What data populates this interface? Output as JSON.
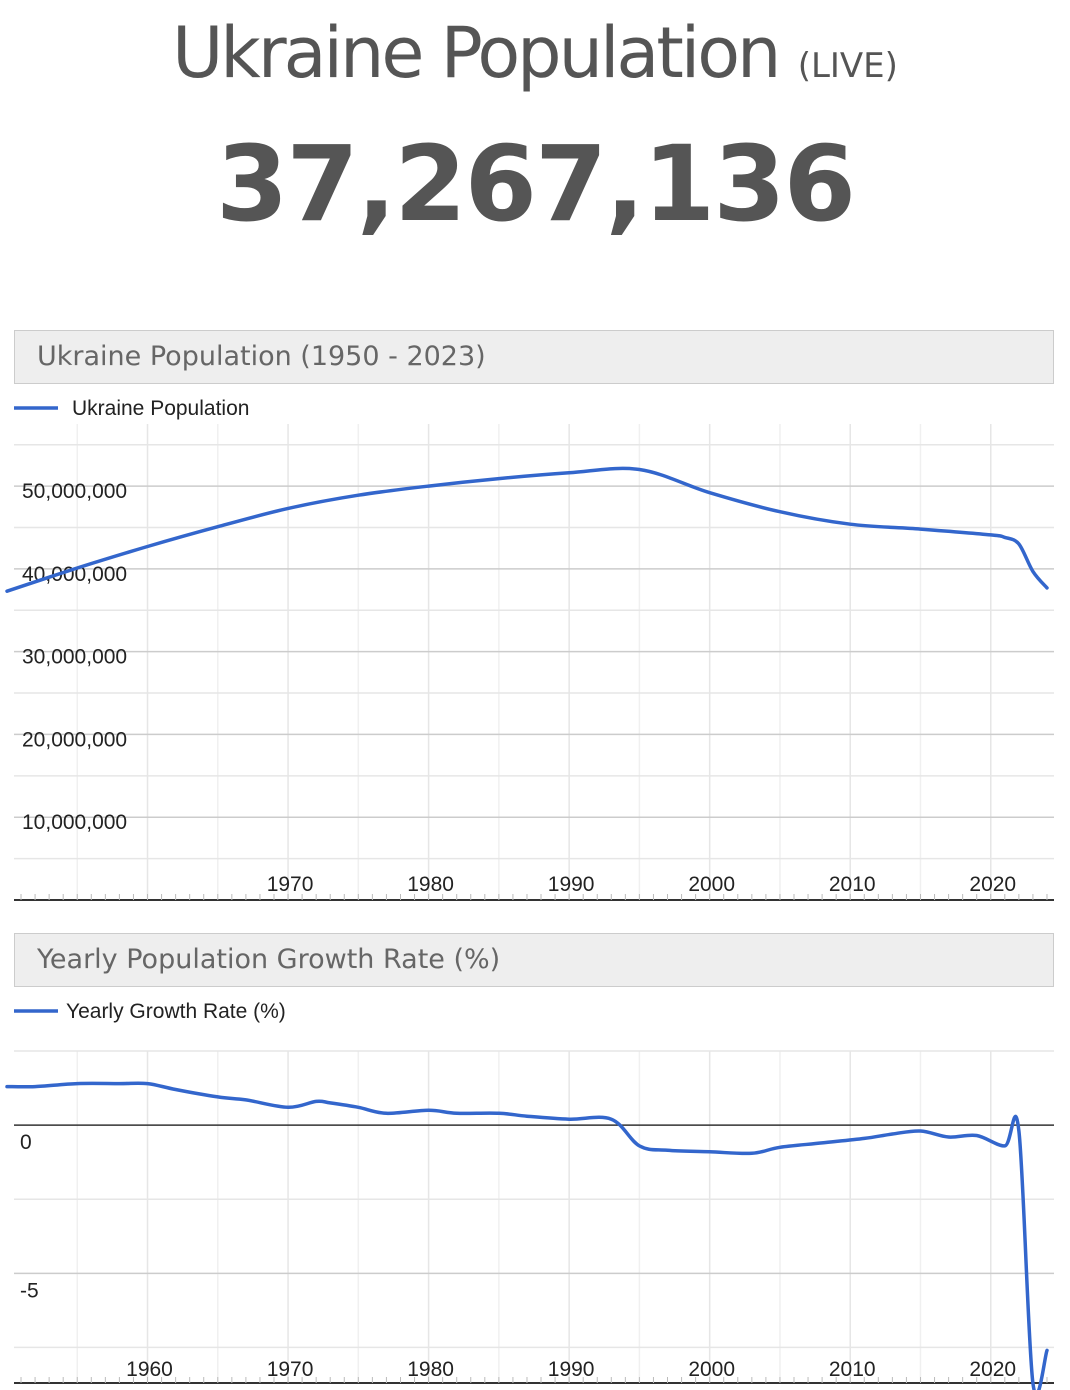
{
  "header": {
    "title": "Ukraine Population",
    "live_label": "(LIVE)",
    "counter": "37,267,136"
  },
  "colors": {
    "line": "#3366cc",
    "grid": "#e6e6e6",
    "grid_major": "#cccccc",
    "text": "#555555",
    "box_bg": "#eeeeee"
  },
  "chart_data": [
    {
      "type": "line",
      "title": "Ukraine Population (1950 - 2023)",
      "series": [
        {
          "name": "Ukraine Population",
          "x": [
            1950,
            1955,
            1960,
            1965,
            1970,
            1975,
            1980,
            1985,
            1990,
            1995,
            2000,
            2005,
            2010,
            2015,
            2020,
            2021,
            2022,
            2023,
            2024
          ],
          "y": [
            37300000,
            40100000,
            42700000,
            45100000,
            47300000,
            48900000,
            50000000,
            50900000,
            51600000,
            52000000,
            49200000,
            46900000,
            45400000,
            44800000,
            44100000,
            43800000,
            43000000,
            39700000,
            37700000
          ]
        }
      ],
      "ylim": [
        0,
        57500000
      ],
      "yticks": [
        10000000,
        20000000,
        30000000,
        40000000,
        50000000
      ],
      "ytick_labels": [
        "10,000,000",
        "20,000,000",
        "30,000,000",
        "40,000,000",
        "50,000,000"
      ],
      "xlim": [
        1950.5,
        2024.5
      ],
      "xticks": [
        1970,
        1980,
        1990,
        2000,
        2010,
        2020
      ],
      "xtick_labels": [
        "1970",
        "1980",
        "1990",
        "2000",
        "2010",
        "2020"
      ],
      "grid": true,
      "legend": "top-left"
    },
    {
      "type": "line",
      "title": "Yearly Population Growth Rate (%)",
      "series": [
        {
          "name": "Yearly Growth Rate (%)",
          "x": [
            1950,
            1952,
            1955,
            1958,
            1960,
            1962,
            1965,
            1967,
            1970,
            1972,
            1973,
            1975,
            1977,
            1980,
            1982,
            1985,
            1987,
            1990,
            1993,
            1995,
            1997,
            2000,
            2003,
            2005,
            2008,
            2011,
            2013,
            2015,
            2017,
            2019,
            2021,
            2022,
            2023,
            2024
          ],
          "y": [
            1.3,
            1.3,
            1.4,
            1.4,
            1.4,
            1.2,
            0.95,
            0.85,
            0.6,
            0.8,
            0.75,
            0.6,
            0.4,
            0.5,
            0.4,
            0.4,
            0.3,
            0.2,
            0.2,
            -0.7,
            -0.85,
            -0.9,
            -0.95,
            -0.75,
            -0.6,
            -0.45,
            -0.3,
            -0.2,
            -0.4,
            -0.35,
            -0.7,
            -0.2,
            -8.7,
            -7.6
          ]
        }
      ],
      "ylim": [
        -8.7,
        2.5
      ],
      "yticks": [
        0,
        -5
      ],
      "ytick_labels": [
        "0",
        "-5"
      ],
      "xlim": [
        1950.5,
        2024.5
      ],
      "xticks": [
        1960,
        1970,
        1980,
        1990,
        2000,
        2010,
        2020
      ],
      "xtick_labels": [
        "1960",
        "1970",
        "1980",
        "1990",
        "2000",
        "2010",
        "2020"
      ],
      "grid": true,
      "legend": "top-left"
    }
  ]
}
